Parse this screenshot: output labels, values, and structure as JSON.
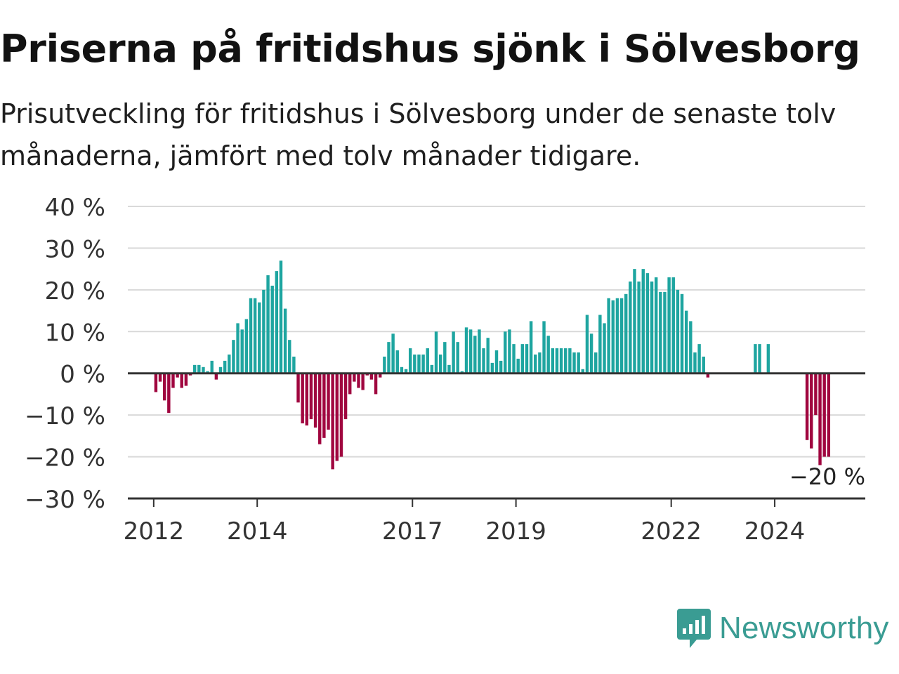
{
  "title": "Priserna på fritidshus sjönk i Sölvesborg",
  "subtitle": "Prisutveckling för fritidshus i Sölvesborg under de senaste tolv månaderna, jämfört med tolv månader tidigare.",
  "brand": {
    "name": "Newsworthy",
    "icon": "newsworthy-logo-icon",
    "color": "#3a9c93"
  },
  "colors": {
    "positive": "#1ea5a0",
    "negative": "#a0063f",
    "grid": "#d9d9d9",
    "zero_line": "#333333"
  },
  "chart_data": {
    "type": "bar",
    "x_start": "2011-07",
    "x_step": "month",
    "yticks": [
      "40 %",
      "30 %",
      "20 %",
      "10 %",
      "0 %",
      "−10 %",
      "−20 %",
      "−30 %"
    ],
    "ytick_values": [
      40,
      30,
      20,
      10,
      0,
      -10,
      -20,
      -30
    ],
    "xticks": [
      {
        "label": "2012",
        "date": "2012-01"
      },
      {
        "label": "2014",
        "date": "2014-01"
      },
      {
        "label": "2017",
        "date": "2017-01"
      },
      {
        "label": "2019",
        "date": "2019-01"
      },
      {
        "label": "2022",
        "date": "2022-01"
      },
      {
        "label": "2024",
        "date": "2024-01"
      }
    ],
    "ylim": [
      -30,
      40
    ],
    "xlim": [
      "2011-07",
      "2025-10"
    ],
    "grid": true,
    "annotation": {
      "text": "−20 %",
      "date": "2024-09"
    },
    "values": [
      null,
      null,
      null,
      null,
      null,
      null,
      -4.5,
      -2,
      -6.5,
      -9.5,
      -3.5,
      -1,
      -3.5,
      -3,
      -0.5,
      2,
      2,
      1.5,
      0.5,
      3,
      -1.5,
      1.5,
      3,
      4.5,
      8,
      12,
      10.5,
      13,
      18,
      18,
      17,
      20,
      23.5,
      21,
      24.5,
      27,
      15.5,
      8,
      4,
      -7,
      -12,
      -12.5,
      -11,
      -13,
      -17,
      -15.5,
      -13.5,
      -23,
      -21,
      -20,
      -11,
      -5,
      -2,
      -3.5,
      -4,
      -0.5,
      -1.5,
      -5,
      -1,
      4,
      7.5,
      9.5,
      5.5,
      1.5,
      1,
      6,
      4.5,
      4.5,
      4.5,
      6,
      2,
      10,
      4.5,
      7.5,
      2,
      10,
      7.5,
      0.5,
      11,
      10.5,
      9,
      10.5,
      6,
      8.5,
      2.5,
      5.5,
      3,
      10,
      10.5,
      7,
      3.5,
      7,
      7,
      12.5,
      4.5,
      5,
      12.5,
      9,
      6,
      6,
      6,
      6,
      6,
      5,
      5,
      1,
      14,
      9.5,
      5,
      14,
      12,
      18,
      17.5,
      18,
      18,
      19,
      22,
      25,
      22,
      25,
      24,
      22,
      23,
      19.5,
      19.5,
      23,
      23,
      20,
      19,
      15,
      12.5,
      5,
      7,
      4,
      -1,
      null,
      null,
      null,
      null,
      null,
      null,
      null,
      null,
      null,
      null,
      7,
      7,
      null,
      7,
      null,
      null,
      null,
      null,
      null,
      null,
      null,
      null,
      -16,
      -18,
      -10,
      -22,
      -20,
      -20
    ]
  }
}
